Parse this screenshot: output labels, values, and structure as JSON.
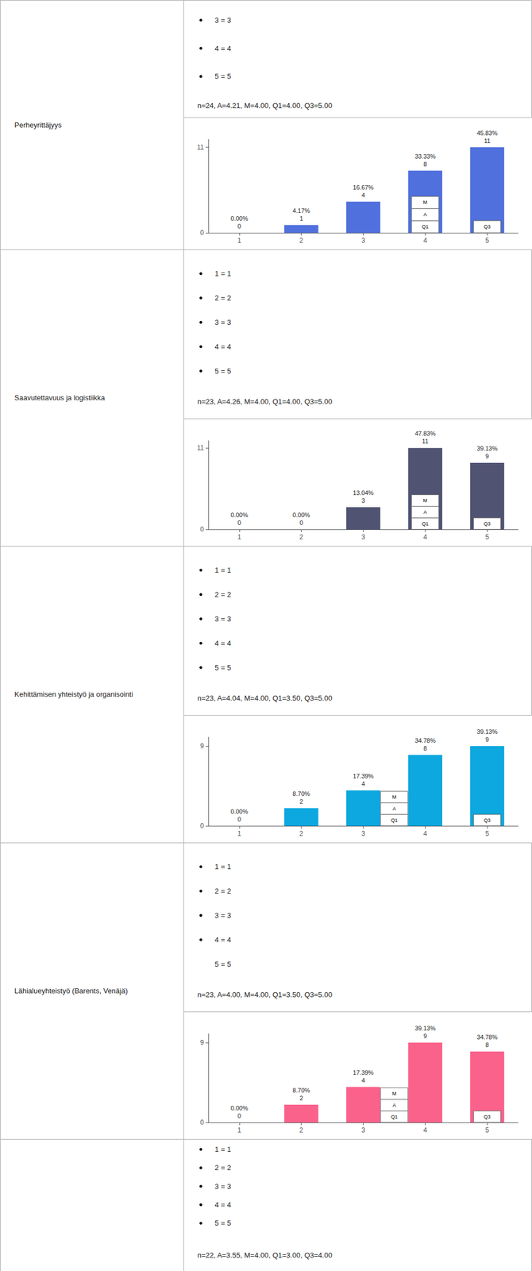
{
  "chart_data": [
    {
      "type": "bar",
      "title": "Perheyrittäjyys",
      "subtitle": "n=24, A=4.21, M=4.00, Q1=4.00, Q3=5.00",
      "annotations": [
        {
          "text": "3 = 3"
        },
        {
          "text": "4 = 4"
        },
        {
          "text": "5 = 5"
        },
        {
          "text": "Q1",
          "x": 4.0
        },
        {
          "text": "A",
          "x": 4.0
        },
        {
          "text": "M",
          "x": 4.0
        },
        {
          "text": "Q3",
          "x": 5.0
        }
      ],
      "x": [
        1,
        2,
        3,
        4,
        5
      ],
      "values": [
        0,
        1,
        4,
        8,
        11
      ],
      "percent_labels": [
        "0.00%",
        "4.17%",
        "16.67%",
        "33.33%",
        "45.83%"
      ],
      "xlim": [
        0.5,
        5.5
      ],
      "xticks": [
        1,
        2,
        3,
        4,
        5
      ],
      "ylim": [
        0,
        12
      ],
      "yticks": [
        0,
        11
      ],
      "data_labels": true,
      "grid": false
    },
    {
      "type": "bar",
      "title": "Saavutettavuus ja logistiikka",
      "subtitle": "n=23, A=4.26, M=4.00, Q1=4.00, Q3=5.00",
      "annotations": [
        {
          "text": "1 = 1"
        },
        {
          "text": "2 = 2"
        },
        {
          "text": "3 = 3"
        },
        {
          "text": "4 = 4"
        },
        {
          "text": "5 = 5"
        },
        {
          "text": "Q1",
          "x": 4.0
        },
        {
          "text": "A",
          "x": 4.0
        },
        {
          "text": "M",
          "x": 4.0
        },
        {
          "text": "Q3",
          "x": 5.0
        }
      ],
      "x": [
        1,
        2,
        3,
        4,
        5
      ],
      "values": [
        0,
        0,
        3,
        11,
        9
      ],
      "percent_labels": [
        "0.00%",
        "0.00%",
        "13.04%",
        "47.83%",
        "39.13%"
      ],
      "xlim": [
        0.5,
        5.5
      ],
      "xticks": [
        1,
        2,
        3,
        4,
        5
      ],
      "ylim": [
        0,
        12
      ],
      "yticks": [
        0,
        11
      ],
      "data_labels": true,
      "grid": false
    },
    {
      "type": "bar",
      "title": "Kehittämisen yhteistyö ja organisointi",
      "subtitle": "n=23, A=4.04, M=4.00, Q1=3.50, Q3=5.00",
      "annotations": [
        {
          "text": "1 = 1"
        },
        {
          "text": "2 = 2"
        },
        {
          "text": "3 = 3"
        },
        {
          "text": "4 = 4"
        },
        {
          "text": "5 = 5"
        },
        {
          "text": "Q1",
          "x": 3.5
        },
        {
          "text": "A",
          "x": 3.5
        },
        {
          "text": "M",
          "x": 3.5
        },
        {
          "text": "Q3",
          "x": 5.0
        }
      ],
      "x": [
        1,
        2,
        3,
        4,
        5
      ],
      "values": [
        0,
        2,
        4,
        8,
        9
      ],
      "percent_labels": [
        "0.00%",
        "8.70%",
        "17.39%",
        "34.78%",
        "39.13%"
      ],
      "xlim": [
        0.5,
        5.5
      ],
      "xticks": [
        1,
        2,
        3,
        4,
        5
      ],
      "ylim": [
        0,
        10
      ],
      "yticks": [
        0,
        9
      ],
      "data_labels": true,
      "grid": false
    },
    {
      "type": "bar",
      "title": "Lähialueyhteistyö (Barents, Venäjä)",
      "subtitle": "n=23, A=4.00, M=4.00, Q1=3.50, Q3=5.00",
      "annotations": [
        {
          "text": "1 = 1"
        },
        {
          "text": "2 = 2"
        },
        {
          "text": "3 = 3"
        },
        {
          "text": "4 = 4"
        },
        {
          "text": "5 = 5"
        },
        {
          "text": "Q1",
          "x": 3.5
        },
        {
          "text": "A",
          "x": 3.5
        },
        {
          "text": "M",
          "x": 3.5
        },
        {
          "text": "Q3",
          "x": 5.0
        }
      ],
      "x": [
        1,
        2,
        3,
        4,
        5
      ],
      "values": [
        0,
        2,
        4,
        9,
        8
      ],
      "percent_labels": [
        "0.00%",
        "8.70%",
        "17.39%",
        "39.13%",
        "34.78%"
      ],
      "xlim": [
        0.5,
        5.5
      ],
      "xticks": [
        1,
        2,
        3,
        4,
        5
      ],
      "ylim": [
        0,
        10
      ],
      "yticks": [
        0,
        9
      ],
      "data_labels": true,
      "grid": false
    },
    {
      "type": "text",
      "subtitle": "n=22, A=3.55, M=4.00, Q1=3.00, Q3=4.00",
      "annotations": [
        {
          "text": "1 = 1"
        },
        {
          "text": "2 = 2"
        },
        {
          "text": "3 = 3"
        },
        {
          "text": "4 = 4"
        },
        {
          "text": "5 = 5"
        }
      ]
    }
  ]
}
